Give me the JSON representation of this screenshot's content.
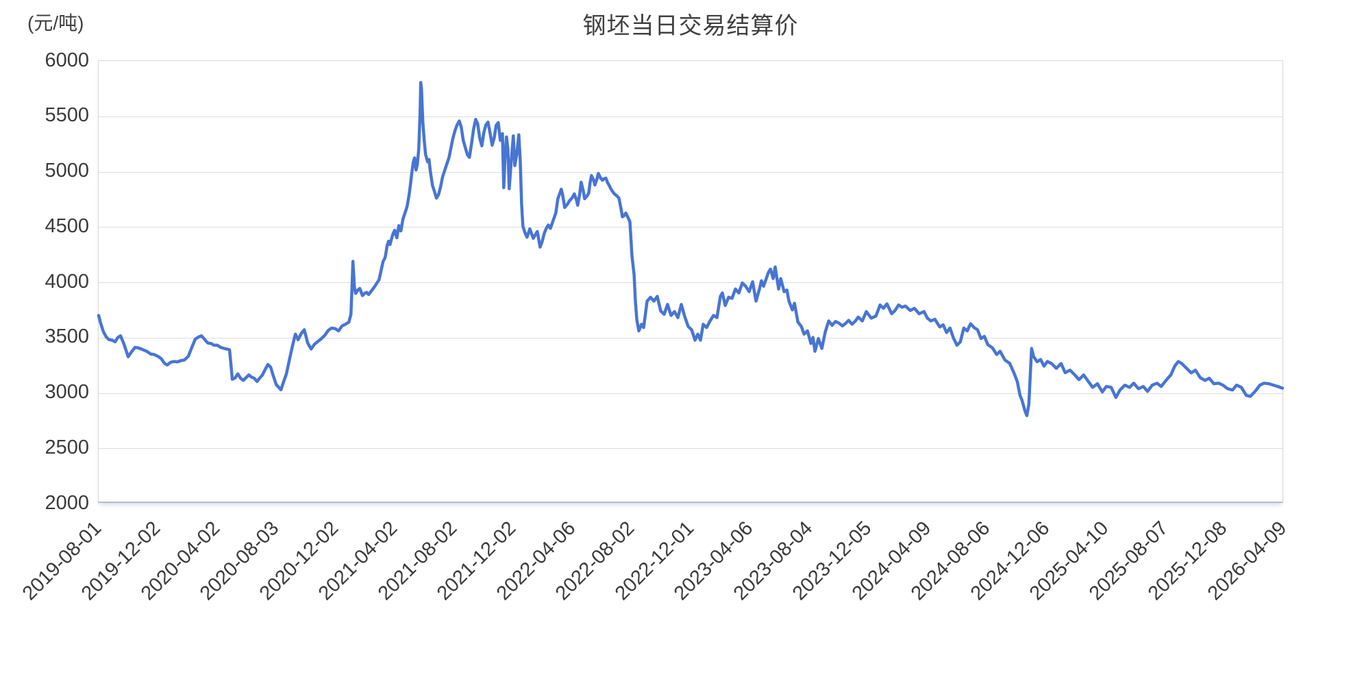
{
  "chart_data": {
    "type": "line",
    "title": "钢坯当日交易结算价",
    "ylabel": "(元/吨)",
    "xlabel": "",
    "ylim": [
      2000,
      6000
    ],
    "y_ticks": [
      6000,
      5500,
      5000,
      4500,
      4000,
      3500,
      3000,
      2500,
      2000
    ],
    "x_tick_labels": [
      "2019-08-01",
      "2019-12-02",
      "2020-04-02",
      "2020-08-03",
      "2020-12-02",
      "2021-04-02",
      "2021-08-02",
      "2021-12-02",
      "2022-04-06",
      "2022-08-02",
      "2022-12-01",
      "2023-04-06",
      "2023-08-04",
      "2023-12-05",
      "2024-04-09",
      "2024-08-06",
      "2024-12-06",
      "2025-04-10",
      "2025-08-07",
      "2025-12-08",
      "2026-04-09"
    ],
    "grid": true,
    "legend_position": "none",
    "line_color": "#4875d3",
    "grid_color": "#dcdcdc",
    "x_unit": "fraction of x-axis from 2019-08-01 (0) to 2026-04-09 (1), price in yuan/ton",
    "points": [
      [
        0.0,
        3690
      ],
      [
        0.0017,
        3620
      ],
      [
        0.0041,
        3540
      ],
      [
        0.0064,
        3495
      ],
      [
        0.0087,
        3470
      ],
      [
        0.0116,
        3465
      ],
      [
        0.0139,
        3450
      ],
      [
        0.0162,
        3490
      ],
      [
        0.0185,
        3505
      ],
      [
        0.0214,
        3430
      ],
      [
        0.0249,
        3315
      ],
      [
        0.0278,
        3360
      ],
      [
        0.0307,
        3400
      ],
      [
        0.0336,
        3395
      ],
      [
        0.0371,
        3380
      ],
      [
        0.0405,
        3365
      ],
      [
        0.044,
        3340
      ],
      [
        0.0469,
        3335
      ],
      [
        0.0498,
        3320
      ],
      [
        0.0527,
        3300
      ],
      [
        0.0556,
        3255
      ],
      [
        0.0579,
        3240
      ],
      [
        0.0608,
        3265
      ],
      [
        0.0637,
        3272
      ],
      [
        0.0666,
        3268
      ],
      [
        0.0695,
        3280
      ],
      [
        0.0724,
        3285
      ],
      [
        0.0758,
        3320
      ],
      [
        0.0787,
        3400
      ],
      [
        0.0816,
        3475
      ],
      [
        0.0845,
        3495
      ],
      [
        0.0869,
        3505
      ],
      [
        0.0897,
        3470
      ],
      [
        0.0921,
        3440
      ],
      [
        0.095,
        3435
      ],
      [
        0.0973,
        3420
      ],
      [
        0.1002,
        3420
      ],
      [
        0.1031,
        3400
      ],
      [
        0.106,
        3390
      ],
      [
        0.1089,
        3383
      ],
      [
        0.1106,
        3378
      ],
      [
        0.1118,
        3240
      ],
      [
        0.1129,
        3110
      ],
      [
        0.1152,
        3122
      ],
      [
        0.1176,
        3160
      ],
      [
        0.1199,
        3120
      ],
      [
        0.1222,
        3100
      ],
      [
        0.1245,
        3125
      ],
      [
        0.1268,
        3150
      ],
      [
        0.1291,
        3130
      ],
      [
        0.1314,
        3120
      ],
      [
        0.1338,
        3090
      ],
      [
        0.1361,
        3122
      ],
      [
        0.1384,
        3150
      ],
      [
        0.1407,
        3200
      ],
      [
        0.143,
        3245
      ],
      [
        0.1453,
        3220
      ],
      [
        0.1476,
        3140
      ],
      [
        0.15,
        3062
      ],
      [
        0.1523,
        3035
      ],
      [
        0.154,
        3015
      ],
      [
        0.1563,
        3090
      ],
      [
        0.1586,
        3160
      ],
      [
        0.161,
        3280
      ],
      [
        0.1639,
        3420
      ],
      [
        0.1662,
        3520
      ],
      [
        0.1685,
        3470
      ],
      [
        0.1714,
        3530
      ],
      [
        0.1737,
        3560
      ],
      [
        0.1766,
        3440
      ],
      [
        0.1795,
        3385
      ],
      [
        0.1824,
        3430
      ],
      [
        0.1853,
        3455
      ],
      [
        0.1882,
        3480
      ],
      [
        0.1911,
        3510
      ],
      [
        0.194,
        3555
      ],
      [
        0.1969,
        3575
      ],
      [
        0.1998,
        3570
      ],
      [
        0.2027,
        3550
      ],
      [
        0.2056,
        3595
      ],
      [
        0.2085,
        3610
      ],
      [
        0.2114,
        3630
      ],
      [
        0.2131,
        3700
      ],
      [
        0.2142,
        4000
      ],
      [
        0.2148,
        4180
      ],
      [
        0.216,
        3950
      ],
      [
        0.2171,
        3890
      ],
      [
        0.2189,
        3920
      ],
      [
        0.2206,
        3935
      ],
      [
        0.2229,
        3870
      ],
      [
        0.2246,
        3890
      ],
      [
        0.2264,
        3900
      ],
      [
        0.2281,
        3880
      ],
      [
        0.2299,
        3905
      ],
      [
        0.2316,
        3930
      ],
      [
        0.2333,
        3955
      ],
      [
        0.2351,
        3985
      ],
      [
        0.2368,
        4012
      ],
      [
        0.2385,
        4093
      ],
      [
        0.2403,
        4180
      ],
      [
        0.242,
        4216
      ],
      [
        0.2438,
        4330
      ],
      [
        0.2449,
        4364
      ],
      [
        0.2461,
        4333
      ],
      [
        0.2478,
        4402
      ],
      [
        0.249,
        4440
      ],
      [
        0.2501,
        4463
      ],
      [
        0.2519,
        4395
      ],
      [
        0.2536,
        4505
      ],
      [
        0.2553,
        4457
      ],
      [
        0.2571,
        4568
      ],
      [
        0.2588,
        4620
      ],
      [
        0.2606,
        4680
      ],
      [
        0.2623,
        4790
      ],
      [
        0.2634,
        4880
      ],
      [
        0.2646,
        4990
      ],
      [
        0.2658,
        5080
      ],
      [
        0.2669,
        5120
      ],
      [
        0.2681,
        5010
      ],
      [
        0.2692,
        5060
      ],
      [
        0.2704,
        5200
      ],
      [
        0.2716,
        5560
      ],
      [
        0.2721,
        5805
      ],
      [
        0.2727,
        5750
      ],
      [
        0.2738,
        5450
      ],
      [
        0.275,
        5280
      ],
      [
        0.2762,
        5150
      ],
      [
        0.2779,
        5085
      ],
      [
        0.2791,
        5105
      ],
      [
        0.2802,
        5000
      ],
      [
        0.282,
        4870
      ],
      [
        0.2837,
        4815
      ],
      [
        0.2854,
        4755
      ],
      [
        0.2872,
        4790
      ],
      [
        0.2889,
        4860
      ],
      [
        0.2906,
        4950
      ],
      [
        0.2924,
        5010
      ],
      [
        0.2941,
        5065
      ],
      [
        0.2959,
        5120
      ],
      [
        0.2976,
        5210
      ],
      [
        0.2993,
        5300
      ],
      [
        0.3011,
        5370
      ],
      [
        0.3028,
        5420
      ],
      [
        0.3046,
        5455
      ],
      [
        0.3063,
        5400
      ],
      [
        0.308,
        5280
      ],
      [
        0.3098,
        5210
      ],
      [
        0.3115,
        5150
      ],
      [
        0.3132,
        5125
      ],
      [
        0.315,
        5250
      ],
      [
        0.3167,
        5380
      ],
      [
        0.3185,
        5470
      ],
      [
        0.3202,
        5430
      ],
      [
        0.3219,
        5300
      ],
      [
        0.3237,
        5230
      ],
      [
        0.3254,
        5350
      ],
      [
        0.3271,
        5420
      ],
      [
        0.3289,
        5445
      ],
      [
        0.3306,
        5350
      ],
      [
        0.3324,
        5235
      ],
      [
        0.3341,
        5300
      ],
      [
        0.3358,
        5415
      ],
      [
        0.3376,
        5440
      ],
      [
        0.3393,
        5280
      ],
      [
        0.3411,
        5340
      ],
      [
        0.3422,
        4850
      ],
      [
        0.3434,
        5150
      ],
      [
        0.3445,
        5310
      ],
      [
        0.3457,
        5200
      ],
      [
        0.3468,
        4840
      ],
      [
        0.3486,
        5100
      ],
      [
        0.3503,
        5320
      ],
      [
        0.3515,
        5050
      ],
      [
        0.3532,
        5150
      ],
      [
        0.3549,
        5330
      ],
      [
        0.3561,
        5100
      ],
      [
        0.3573,
        4700
      ],
      [
        0.3584,
        4500
      ],
      [
        0.3602,
        4440
      ],
      [
        0.3619,
        4400
      ],
      [
        0.3642,
        4476
      ],
      [
        0.3671,
        4390
      ],
      [
        0.3688,
        4420
      ],
      [
        0.3706,
        4452
      ],
      [
        0.3729,
        4310
      ],
      [
        0.3746,
        4360
      ],
      [
        0.3764,
        4434
      ],
      [
        0.3781,
        4480
      ],
      [
        0.3798,
        4510
      ],
      [
        0.3816,
        4480
      ],
      [
        0.3839,
        4550
      ],
      [
        0.3862,
        4620
      ],
      [
        0.3879,
        4750
      ],
      [
        0.3908,
        4836
      ],
      [
        0.392,
        4780
      ],
      [
        0.3937,
        4670
      ],
      [
        0.396,
        4700
      ],
      [
        0.3978,
        4732
      ],
      [
        0.4001,
        4760
      ],
      [
        0.4018,
        4794
      ],
      [
        0.4036,
        4740
      ],
      [
        0.4047,
        4690
      ],
      [
        0.4065,
        4800
      ],
      [
        0.4076,
        4899
      ],
      [
        0.4094,
        4820
      ],
      [
        0.4105,
        4750
      ],
      [
        0.4123,
        4770
      ],
      [
        0.414,
        4800
      ],
      [
        0.4152,
        4900
      ],
      [
        0.4163,
        4960
      ],
      [
        0.4181,
        4920
      ],
      [
        0.4192,
        4874
      ],
      [
        0.421,
        4930
      ],
      [
        0.4221,
        4979
      ],
      [
        0.4239,
        4940
      ],
      [
        0.4256,
        4917
      ],
      [
        0.4268,
        4930
      ],
      [
        0.4285,
        4936
      ],
      [
        0.4297,
        4900
      ],
      [
        0.4314,
        4868
      ],
      [
        0.4326,
        4840
      ],
      [
        0.4343,
        4813
      ],
      [
        0.436,
        4790
      ],
      [
        0.4378,
        4775
      ],
      [
        0.4395,
        4755
      ],
      [
        0.4413,
        4660
      ],
      [
        0.4424,
        4585
      ],
      [
        0.4442,
        4600
      ],
      [
        0.4453,
        4620
      ],
      [
        0.4471,
        4580
      ],
      [
        0.4488,
        4540
      ],
      [
        0.4505,
        4230
      ],
      [
        0.4523,
        4060
      ],
      [
        0.4534,
        3820
      ],
      [
        0.4546,
        3650
      ],
      [
        0.4563,
        3550
      ],
      [
        0.4586,
        3610
      ],
      [
        0.4604,
        3580
      ],
      [
        0.4633,
        3820
      ],
      [
        0.4662,
        3855
      ],
      [
        0.4691,
        3820
      ],
      [
        0.4719,
        3863
      ],
      [
        0.4748,
        3730
      ],
      [
        0.4777,
        3700
      ],
      [
        0.4806,
        3790
      ],
      [
        0.4835,
        3690
      ],
      [
        0.4864,
        3725
      ],
      [
        0.4893,
        3670
      ],
      [
        0.4922,
        3790
      ],
      [
        0.4951,
        3680
      ],
      [
        0.498,
        3590
      ],
      [
        0.5009,
        3560
      ],
      [
        0.5038,
        3465
      ],
      [
        0.5061,
        3520
      ],
      [
        0.5084,
        3465
      ],
      [
        0.5107,
        3610
      ],
      [
        0.5136,
        3580
      ],
      [
        0.5165,
        3640
      ],
      [
        0.5194,
        3690
      ],
      [
        0.5223,
        3670
      ],
      [
        0.5252,
        3863
      ],
      [
        0.5269,
        3894
      ],
      [
        0.5293,
        3781
      ],
      [
        0.5322,
        3855
      ],
      [
        0.535,
        3845
      ],
      [
        0.5379,
        3930
      ],
      [
        0.5408,
        3894
      ],
      [
        0.5437,
        3985
      ],
      [
        0.5466,
        3955
      ],
      [
        0.5495,
        3905
      ],
      [
        0.5524,
        3995
      ],
      [
        0.5553,
        3820
      ],
      [
        0.5582,
        3930
      ],
      [
        0.5599,
        4005
      ],
      [
        0.5617,
        3955
      ],
      [
        0.564,
        4025
      ],
      [
        0.5657,
        4080
      ],
      [
        0.5675,
        4110
      ],
      [
        0.5698,
        4025
      ],
      [
        0.5715,
        4130
      ],
      [
        0.5744,
        3930
      ],
      [
        0.5762,
        4025
      ],
      [
        0.5791,
        3905
      ],
      [
        0.5814,
        3920
      ],
      [
        0.5831,
        3820
      ],
      [
        0.586,
        3740
      ],
      [
        0.5878,
        3800
      ],
      [
        0.5907,
        3630
      ],
      [
        0.5936,
        3590
      ],
      [
        0.5959,
        3520
      ],
      [
        0.5988,
        3550
      ],
      [
        0.6017,
        3435
      ],
      [
        0.6034,
        3490
      ],
      [
        0.6051,
        3365
      ],
      [
        0.608,
        3480
      ],
      [
        0.6109,
        3390
      ],
      [
        0.6138,
        3540
      ],
      [
        0.6167,
        3640
      ],
      [
        0.6196,
        3600
      ],
      [
        0.6225,
        3635
      ],
      [
        0.6254,
        3620
      ],
      [
        0.6283,
        3595
      ],
      [
        0.6312,
        3620
      ],
      [
        0.6335,
        3645
      ],
      [
        0.6364,
        3610
      ],
      [
        0.6393,
        3640
      ],
      [
        0.6416,
        3675
      ],
      [
        0.6451,
        3640
      ],
      [
        0.6485,
        3725
      ],
      [
        0.6526,
        3665
      ],
      [
        0.6566,
        3685
      ],
      [
        0.6601,
        3785
      ],
      [
        0.663,
        3755
      ],
      [
        0.6659,
        3795
      ],
      [
        0.6699,
        3705
      ],
      [
        0.6728,
        3735
      ],
      [
        0.6757,
        3785
      ],
      [
        0.6786,
        3765
      ],
      [
        0.6815,
        3775
      ],
      [
        0.6856,
        3735
      ],
      [
        0.6891,
        3755
      ],
      [
        0.6931,
        3705
      ],
      [
        0.6972,
        3725
      ],
      [
        0.7001,
        3665
      ],
      [
        0.703,
        3640
      ],
      [
        0.7064,
        3655
      ],
      [
        0.7105,
        3585
      ],
      [
        0.7134,
        3605
      ],
      [
        0.7163,
        3535
      ],
      [
        0.7192,
        3575
      ],
      [
        0.7221,
        3485
      ],
      [
        0.725,
        3420
      ],
      [
        0.7279,
        3450
      ],
      [
        0.7308,
        3575
      ],
      [
        0.7337,
        3550
      ],
      [
        0.7366,
        3615
      ],
      [
        0.7395,
        3580
      ],
      [
        0.7424,
        3560
      ],
      [
        0.7453,
        3480
      ],
      [
        0.7482,
        3500
      ],
      [
        0.7511,
        3425
      ],
      [
        0.7551,
        3395
      ],
      [
        0.7586,
        3335
      ],
      [
        0.7615,
        3365
      ],
      [
        0.7656,
        3285
      ],
      [
        0.7696,
        3255
      ],
      [
        0.7731,
        3170
      ],
      [
        0.776,
        3090
      ],
      [
        0.7783,
        2965
      ],
      [
        0.78,
        2920
      ],
      [
        0.7823,
        2830
      ],
      [
        0.7841,
        2780
      ],
      [
        0.7858,
        2885
      ],
      [
        0.7881,
        3390
      ],
      [
        0.7899,
        3315
      ],
      [
        0.7928,
        3270
      ],
      [
        0.7957,
        3290
      ],
      [
        0.7986,
        3230
      ],
      [
        0.8014,
        3272
      ],
      [
        0.8049,
        3254
      ],
      [
        0.809,
        3210
      ],
      [
        0.813,
        3254
      ],
      [
        0.8165,
        3170
      ],
      [
        0.8205,
        3193
      ],
      [
        0.8246,
        3150
      ],
      [
        0.8281,
        3107
      ],
      [
        0.8321,
        3150
      ],
      [
        0.8362,
        3088
      ],
      [
        0.8397,
        3037
      ],
      [
        0.8437,
        3070
      ],
      [
        0.8478,
        2995
      ],
      [
        0.8512,
        3045
      ],
      [
        0.8553,
        3037
      ],
      [
        0.8593,
        2945
      ],
      [
        0.8628,
        3013
      ],
      [
        0.8669,
        3057
      ],
      [
        0.8709,
        3037
      ],
      [
        0.8744,
        3075
      ],
      [
        0.8784,
        3025
      ],
      [
        0.8825,
        3045
      ],
      [
        0.886,
        3000
      ],
      [
        0.89,
        3057
      ],
      [
        0.8941,
        3075
      ],
      [
        0.8976,
        3045
      ],
      [
        0.9016,
        3100
      ],
      [
        0.9057,
        3150
      ],
      [
        0.9091,
        3231
      ],
      [
        0.912,
        3272
      ],
      [
        0.9149,
        3254
      ],
      [
        0.919,
        3210
      ],
      [
        0.923,
        3169
      ],
      [
        0.9265,
        3193
      ],
      [
        0.9306,
        3125
      ],
      [
        0.9346,
        3100
      ],
      [
        0.9381,
        3120
      ],
      [
        0.9421,
        3070
      ],
      [
        0.9462,
        3075
      ],
      [
        0.9497,
        3057
      ],
      [
        0.9537,
        3025
      ],
      [
        0.9578,
        3013
      ],
      [
        0.9613,
        3057
      ],
      [
        0.9653,
        3037
      ],
      [
        0.9694,
        2965
      ],
      [
        0.9728,
        2955
      ],
      [
        0.9769,
        3000
      ],
      [
        0.9809,
        3057
      ],
      [
        0.9844,
        3075
      ],
      [
        0.9885,
        3070
      ],
      [
        0.9925,
        3057
      ],
      [
        0.996,
        3045
      ],
      [
        1.0,
        3030
      ]
    ]
  }
}
